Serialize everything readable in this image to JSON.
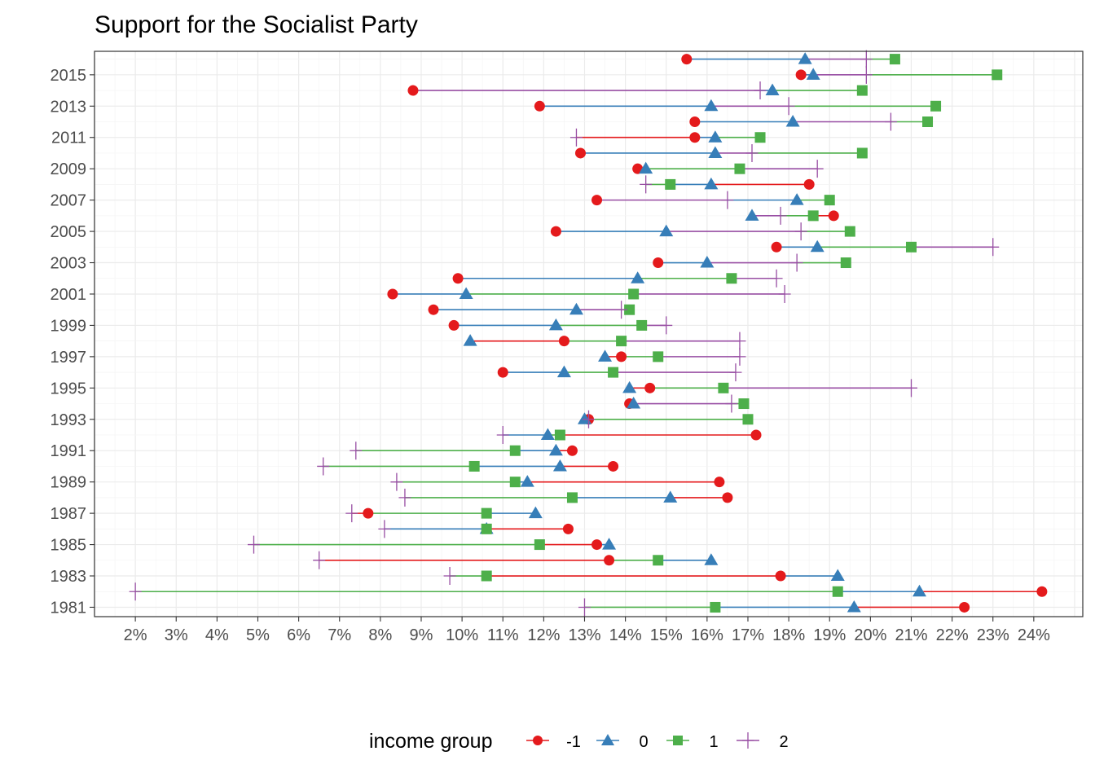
{
  "chart_data": {
    "type": "dot-range",
    "title": "Support for the Socialist Party",
    "xlabel": "",
    "ylabel": "",
    "x_unit": "percent",
    "xlim": [
      1,
      25.2
    ],
    "x_ticks": [
      2,
      3,
      4,
      5,
      6,
      7,
      8,
      9,
      10,
      11,
      12,
      13,
      14,
      15,
      16,
      17,
      18,
      19,
      20,
      21,
      22,
      23,
      24
    ],
    "x_tick_labels": [
      "2%",
      "3%",
      "4%",
      "5%",
      "6%",
      "7%",
      "8%",
      "9%",
      "10%",
      "11%",
      "12%",
      "13%",
      "14%",
      "15%",
      "16%",
      "17%",
      "18%",
      "19%",
      "20%",
      "21%",
      "22%",
      "23%",
      "24%"
    ],
    "ylim": [
      1980.4,
      2016.5
    ],
    "y_ticks": [
      1981,
      1983,
      1985,
      1987,
      1989,
      1991,
      1993,
      1995,
      1997,
      1999,
      2001,
      2003,
      2005,
      2007,
      2009,
      2011,
      2013,
      2015
    ],
    "y_tick_labels": [
      "1981",
      "1983",
      "1985",
      "1987",
      "1989",
      "1991",
      "1993",
      "1995",
      "1997",
      "1999",
      "2001",
      "2003",
      "2005",
      "2007",
      "2009",
      "2011",
      "2013",
      "2015"
    ],
    "grid": true,
    "legend": {
      "title": "income group",
      "position": "bottom",
      "labels": [
        "-1",
        "0",
        "1",
        "2"
      ]
    },
    "series": [
      {
        "name": "-1",
        "color": "#e41a1c",
        "marker": "circle",
        "years": [
          1981,
          1982,
          1983,
          1984,
          1985,
          1986,
          1987,
          1988,
          1989,
          1990,
          1991,
          1992,
          1993,
          1994,
          1995,
          1996,
          1997,
          1998,
          1999,
          2000,
          2001,
          2002,
          2003,
          2004,
          2005,
          2006,
          2007,
          2008,
          2009,
          2010,
          2011,
          2012,
          2013,
          2014,
          2015,
          2016
        ],
        "values": [
          22.3,
          24.2,
          17.8,
          13.6,
          13.3,
          12.6,
          7.7,
          16.5,
          16.3,
          13.7,
          12.7,
          17.2,
          13.1,
          14.1,
          14.6,
          11.0,
          13.9,
          12.5,
          9.8,
          9.3,
          8.3,
          9.9,
          14.8,
          17.7,
          12.3,
          19.1,
          13.3,
          18.5,
          14.3,
          12.9,
          15.7,
          15.7,
          11.9,
          8.8,
          18.3,
          15.5
        ]
      },
      {
        "name": "0",
        "color": "#377eb8",
        "marker": "triangle",
        "years": [
          1981,
          1982,
          1983,
          1984,
          1985,
          1986,
          1987,
          1988,
          1989,
          1990,
          1991,
          1992,
          1993,
          1994,
          1995,
          1996,
          1997,
          1998,
          1999,
          2000,
          2001,
          2002,
          2003,
          2004,
          2005,
          2006,
          2007,
          2008,
          2009,
          2010,
          2011,
          2012,
          2013,
          2014,
          2015,
          2016
        ],
        "values": [
          19.6,
          21.2,
          19.2,
          16.1,
          13.6,
          10.6,
          11.8,
          15.1,
          11.6,
          12.4,
          12.3,
          12.1,
          13.0,
          14.2,
          14.1,
          12.5,
          13.5,
          10.2,
          12.3,
          12.8,
          10.1,
          14.3,
          16.0,
          18.7,
          15.0,
          17.1,
          18.2,
          16.1,
          14.5,
          16.2,
          16.2,
          18.1,
          16.1,
          17.6,
          18.6,
          18.4
        ]
      },
      {
        "name": "1",
        "color": "#4daf4a",
        "marker": "square",
        "years": [
          1981,
          1982,
          1983,
          1984,
          1985,
          1986,
          1987,
          1988,
          1989,
          1990,
          1991,
          1992,
          1993,
          1994,
          1995,
          1996,
          1997,
          1998,
          1999,
          2000,
          2001,
          2002,
          2003,
          2004,
          2005,
          2006,
          2007,
          2008,
          2009,
          2010,
          2011,
          2012,
          2013,
          2014,
          2015,
          2016
        ],
        "values": [
          16.2,
          19.2,
          10.6,
          14.8,
          11.9,
          10.6,
          10.6,
          12.7,
          11.3,
          10.3,
          11.3,
          12.4,
          17.0,
          16.9,
          16.4,
          13.7,
          14.8,
          13.9,
          14.4,
          14.1,
          14.2,
          16.6,
          19.4,
          21.0,
          19.5,
          18.6,
          19.0,
          15.1,
          16.8,
          19.8,
          17.3,
          21.4,
          21.6,
          19.8,
          23.1,
          20.6
        ]
      },
      {
        "name": "2",
        "color": "#984ea3",
        "marker": "plus",
        "years": [
          1981,
          1982,
          1983,
          1984,
          1985,
          1986,
          1987,
          1988,
          1989,
          1990,
          1991,
          1992,
          1993,
          1994,
          1995,
          1996,
          1997,
          1998,
          1999,
          2000,
          2001,
          2002,
          2003,
          2004,
          2005,
          2006,
          2007,
          2008,
          2009,
          2010,
          2011,
          2012,
          2013,
          2014,
          2015,
          2016
        ],
        "values": [
          13.0,
          2.0,
          9.7,
          6.5,
          4.9,
          8.1,
          7.3,
          8.6,
          8.4,
          6.6,
          7.4,
          11.0,
          13.1,
          16.6,
          21.0,
          16.7,
          16.8,
          16.8,
          15.0,
          13.9,
          17.9,
          17.7,
          18.2,
          23.0,
          18.3,
          17.8,
          16.5,
          14.5,
          18.7,
          17.1,
          12.8,
          20.5,
          18.0,
          17.3,
          19.9,
          19.9
        ]
      }
    ]
  }
}
